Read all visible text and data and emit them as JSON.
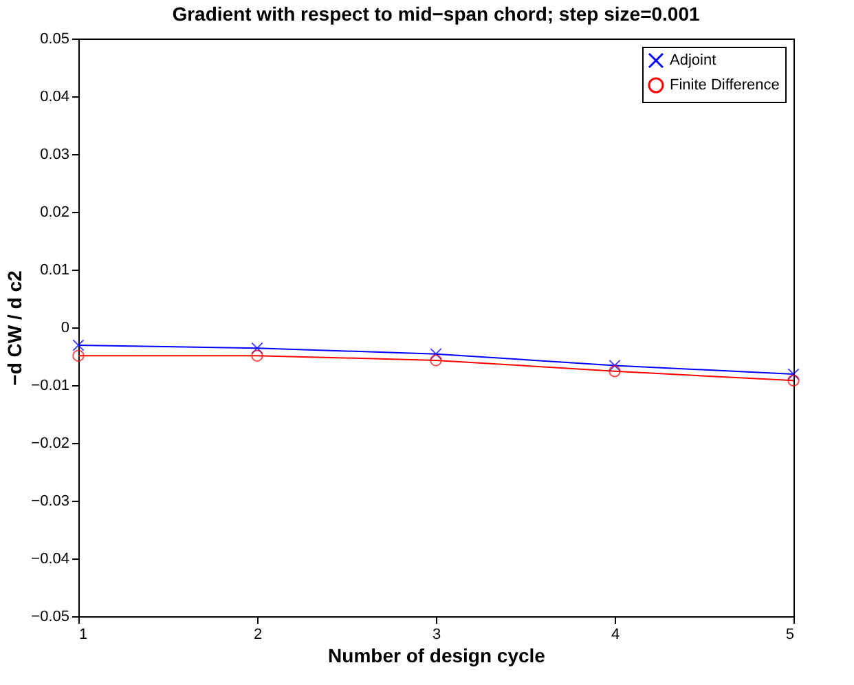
{
  "chart_data": {
    "type": "line",
    "title": "Gradient with respect to mid−span chord; step size=0.001",
    "xlabel": "Number of design cycle",
    "ylabel": "−d CW / d c2",
    "x": [
      1,
      2,
      3,
      4,
      5
    ],
    "series": [
      {
        "name": "Adjoint",
        "color": "#0000ff",
        "marker": "cross",
        "values": [
          -0.0031,
          -0.0036,
          -0.0046,
          -0.0066,
          -0.0081
        ]
      },
      {
        "name": "Finite Difference",
        "color": "#ff0000",
        "marker": "circle",
        "values": [
          -0.0049,
          -0.0049,
          -0.0057,
          -0.0076,
          -0.0092
        ]
      }
    ],
    "xlim": [
      1,
      5
    ],
    "xticks": [
      1,
      2,
      3,
      4,
      5
    ],
    "ylim": [
      -0.05,
      0.05
    ],
    "yticks": [
      -0.05,
      -0.04,
      -0.03,
      -0.02,
      -0.01,
      0,
      0.01,
      0.02,
      0.03,
      0.04,
      0.05
    ],
    "grid": false,
    "legend": "top right",
    "line_style": "solid"
  }
}
